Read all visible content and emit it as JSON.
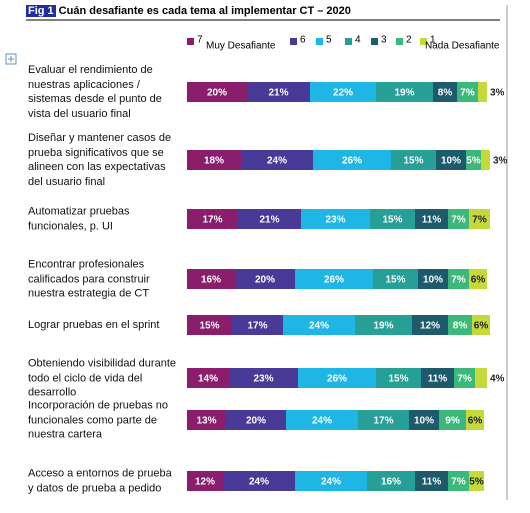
{
  "chart_data": {
    "type": "stacked-bar-horizontal",
    "figure_label": "Fig 1",
    "title": "Cuán desafiante  es cada tema al implementar CT – 2020",
    "legend_left_label": "Muy Desafiante",
    "legend_right_label": "Nada Desafiante",
    "categories": [
      "Evaluar el rendimiento de nuestras aplicaciones / sistemas desde el punto de vista del usuario final",
      "Diseñar y mantener casos de prueba significativos que se alineen con las expectativas del usuario final",
      "Automatizar pruebas funcionales, p. UI",
      "Encontrar profesionales calificados para construir nuestra estrategia de CT",
      "Lograr pruebas en el sprint",
      "Obteniendo visibilidad durante todo el ciclo de vida del desarrollo",
      "Incorporación de pruebas no funcionales como parte de nuestra cartera",
      "Acceso a entornos de prueba y datos de prueba a pedido"
    ],
    "series": [
      {
        "name": "7",
        "color": "#8b1e6c",
        "values": [
          20,
          18,
          17,
          16,
          15,
          14,
          13,
          12
        ],
        "value_labels": [
          "20%",
          "18%",
          "17%",
          "16%",
          "15%",
          "14%",
          "13%",
          "12%"
        ]
      },
      {
        "name": "6",
        "color": "#4a3a98",
        "values": [
          21,
          24,
          21,
          20,
          17,
          23,
          20,
          24
        ],
        "value_labels": [
          "21%",
          "24%",
          "21%",
          "20%",
          "17%",
          "23%",
          "20%",
          "24%"
        ]
      },
      {
        "name": "5",
        "color": "#1fb5e5",
        "values": [
          22,
          26,
          23,
          26,
          24,
          26,
          24,
          24
        ],
        "value_labels": [
          "22%",
          "26%",
          "23%",
          "26%",
          "24%",
          "26%",
          "24%",
          "24%"
        ]
      },
      {
        "name": "4",
        "color": "#26a096",
        "values": [
          19,
          15,
          15,
          15,
          19,
          15,
          17,
          16
        ],
        "value_labels": [
          "19%",
          "15%",
          "15%",
          "15%",
          "19%",
          "15%",
          "17%",
          "16%"
        ]
      },
      {
        "name": "3",
        "color": "#1d5a6c",
        "values": [
          8,
          10,
          11,
          10,
          12,
          11,
          10,
          11
        ],
        "value_labels": [
          "8%",
          "10%",
          "11%",
          "10%",
          "12%",
          "11%",
          "10%",
          "11%"
        ]
      },
      {
        "name": "2",
        "color": "#3cb87a",
        "values": [
          7,
          5,
          7,
          7,
          8,
          7,
          9,
          7
        ],
        "value_labels": [
          "7%",
          "5%",
          "7%",
          "7%",
          "8%",
          "7%",
          "9%",
          "7%"
        ]
      },
      {
        "name": "1",
        "color": "#c6d93a",
        "values": [
          3,
          3,
          7,
          6,
          6,
          4,
          6,
          5
        ],
        "value_labels": [
          "3%",
          "3%",
          "7%",
          "6%",
          "6%",
          "4%",
          "6%",
          "5%"
        ]
      }
    ]
  }
}
